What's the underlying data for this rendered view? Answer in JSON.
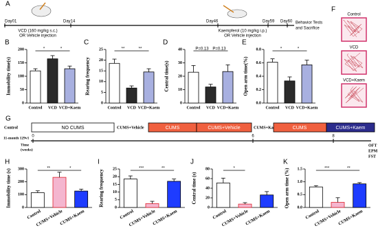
{
  "panel_labels": [
    "A",
    "B",
    "C",
    "D",
    "E",
    "F",
    "G",
    "H",
    "I",
    "J",
    "K"
  ],
  "timeline_a": {
    "days": [
      "Day01",
      "Day14",
      "Day46",
      "Day59",
      "Day60"
    ],
    "vcd": [
      "VCD (160 mg/kg s.c.)",
      "OR Vehicle injection"
    ],
    "kaem": [
      "Kaempferol (10 mg/kg i.p.)",
      "OR Vehicle injection"
    ],
    "end": [
      "Behavior Tests",
      "and Sacrifice"
    ]
  },
  "tracks_f": [
    "Control",
    "VCD",
    "VCD+Kaem"
  ],
  "timeline_g": {
    "groups": [
      {
        "name": "Control",
        "boxes": [
          "NO CUMS"
        ]
      },
      {
        "name": "CUMS+Vehicle",
        "boxes": [
          "CUMS",
          "CUMS+Vehicle"
        ]
      },
      {
        "name": "CUMS+Kaem",
        "boxes": [
          "CUMS",
          "CUMS+Kaem"
        ]
      }
    ],
    "strain": "11-month 129v1",
    "axis_label": [
      "Time",
      "(weeks)"
    ],
    "ticks": [
      "0",
      "6",
      "8"
    ],
    "tests": [
      "OFT",
      "EPM",
      "FST"
    ]
  },
  "chart_data": [
    {
      "type": "bar",
      "ylabel": "Immobility time(s)",
      "categories": [
        "Control",
        "VCD",
        "VCD+Kaem"
      ],
      "values": [
        120,
        165,
        128
      ],
      "errors": [
        8,
        12,
        10
      ],
      "colors": [
        "#ffffff",
        "#2b2b2b",
        "#a8b0e0"
      ],
      "edge_colors": [
        "#000000",
        "#000000",
        "#000000"
      ],
      "ylim": [
        0,
        200
      ],
      "yticks": [
        0,
        50,
        100,
        150,
        200
      ],
      "annotations": [
        "*",
        "*"
      ]
    },
    {
      "type": "bar",
      "ylabel": "Rearing frequency",
      "categories": [
        "Control",
        "VCD",
        "VCD+Kaem"
      ],
      "values": [
        18.5,
        7,
        14.5
      ],
      "errors": [
        2,
        1,
        1.5
      ],
      "colors": [
        "#ffffff",
        "#2b2b2b",
        "#a8b0e0"
      ],
      "edge_colors": [
        "#000000",
        "#000000",
        "#000000"
      ],
      "ylim": [
        0,
        25
      ],
      "yticks": [
        0,
        5,
        10,
        15,
        20,
        25
      ],
      "annotations": [
        "**",
        "**"
      ]
    },
    {
      "type": "bar",
      "ylabel": "Central time(s)",
      "categories": [
        "Control",
        "VCD",
        "VCD+Kaem"
      ],
      "values": [
        23,
        12,
        23.5
      ],
      "errors": [
        5,
        2,
        5
      ],
      "colors": [
        "#ffffff",
        "#2b2b2b",
        "#a8b0e0"
      ],
      "edge_colors": [
        "#000000",
        "#000000",
        "#000000"
      ],
      "ylim": [
        0,
        40
      ],
      "yticks": [
        0,
        10,
        20,
        30,
        40
      ],
      "annotations": [
        "P=0.13",
        "P=0.13"
      ]
    },
    {
      "type": "bar",
      "ylabel": "Open arm time(%)",
      "categories": [
        "Control",
        "VCD",
        "VCD+Kaem"
      ],
      "values": [
        0.61,
        0.33,
        0.57
      ],
      "errors": [
        0.05,
        0.06,
        0.07
      ],
      "colors": [
        "#ffffff",
        "#2b2b2b",
        "#a8b0e0"
      ],
      "edge_colors": [
        "#000000",
        "#000000",
        "#000000"
      ],
      "ylim": [
        0,
        0.8
      ],
      "yticks": [
        {
          "value": 0,
          "label": "0.0"
        },
        0.2,
        0.4,
        0.6,
        0.8
      ],
      "annotations": [
        "*",
        "*"
      ]
    },
    {
      "type": "bar",
      "ylabel": "Immobility time (s)",
      "categories": [
        "Control",
        "CUMS+Vehicle",
        "CUMS+Kaem"
      ],
      "values": [
        115,
        235,
        128
      ],
      "errors": [
        15,
        40,
        15
      ],
      "colors": [
        "#ffffff",
        "#f4b6cf",
        "#1e3cff"
      ],
      "edge_colors": [
        "#000000",
        "#e0202a",
        "#000000"
      ],
      "ylim": [
        0,
        300
      ],
      "yticks": [
        0,
        100,
        200,
        300
      ],
      "annotations": [
        "**",
        "*"
      ]
    },
    {
      "type": "bar",
      "ylabel": "Rearing frequency",
      "categories": [
        "Control",
        "CUMS+Vehicle",
        "CUMS+Kaem"
      ],
      "values": [
        18.5,
        2.5,
        17
      ],
      "errors": [
        2,
        1.5,
        1.5
      ],
      "colors": [
        "#ffffff",
        "#f4b6cf",
        "#1e3cff"
      ],
      "edge_colors": [
        "#000000",
        "#e0202a",
        "#000000"
      ],
      "ylim": [
        0,
        25
      ],
      "yticks": [
        0,
        5,
        10,
        15,
        20,
        25
      ],
      "annotations": [
        "***",
        "**"
      ]
    },
    {
      "type": "bar",
      "ylabel": "Central time (s)",
      "categories": [
        "Control",
        "CUMS+Vehicle",
        "CUMS+Kaem"
      ],
      "values": [
        51,
        7,
        26
      ],
      "errors": [
        10,
        3,
        7
      ],
      "colors": [
        "#ffffff",
        "#f4b6cf",
        "#1e3cff"
      ],
      "edge_colors": [
        "#000000",
        "#e0202a",
        "#000000"
      ],
      "ylim": [
        0,
        80
      ],
      "yticks": [
        0,
        20,
        40,
        60,
        80
      ],
      "annotations": [
        "*"
      ]
    },
    {
      "type": "bar",
      "ylabel": "Open arm time (%)",
      "categories": [
        "Control",
        "CUMS+Vehicle",
        "CUMS+Kaem"
      ],
      "values": [
        0.8,
        0.2,
        0.92
      ],
      "errors": [
        0.05,
        0.18,
        0.05
      ],
      "colors": [
        "#ffffff",
        "#f4b6cf",
        "#1e3cff"
      ],
      "edge_colors": [
        "#000000",
        "#e0202a",
        "#000000"
      ],
      "ylim": [
        0,
        1.5
      ],
      "yticks": [
        {
          "value": 0,
          "label": "0.0"
        },
        0.5,
        {
          "value": 1,
          "label": "1.0"
        },
        1.5
      ],
      "annotations": [
        "***",
        "**"
      ]
    }
  ]
}
